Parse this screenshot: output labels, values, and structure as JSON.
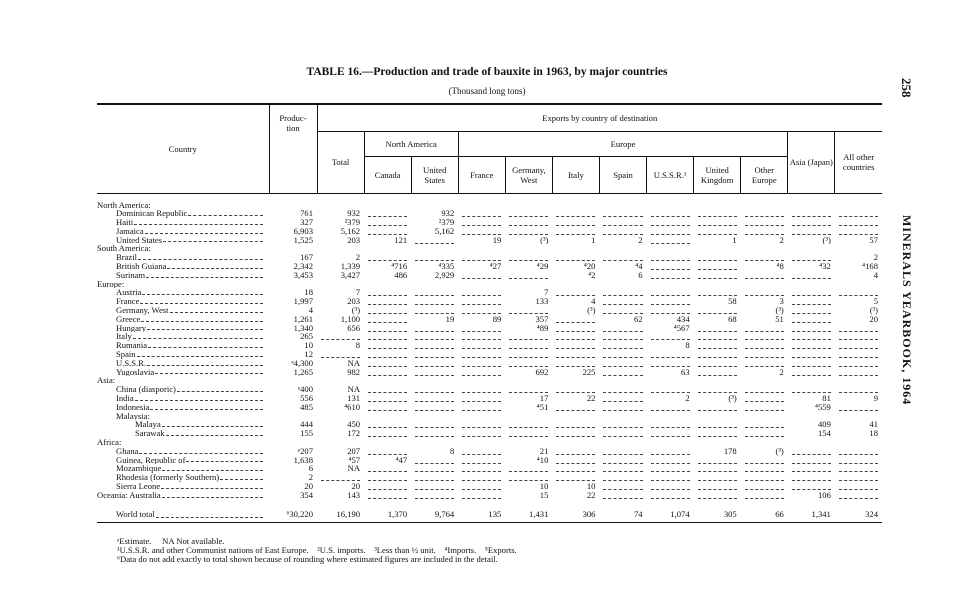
{
  "page_number": "258",
  "side_title": "MINERALS YEARBOOK, 1964",
  "title": "TABLE 16.—Production and trade of bauxite in 1963, by major countries",
  "subtitle": "(Thousand long tons)",
  "header": {
    "country": "Country",
    "production": [
      "Produc-",
      "tion"
    ],
    "exports": "Exports by country of destination",
    "total": "Total",
    "north_america": "North America",
    "europe": "Europe",
    "asia": "Asia (Japan)",
    "all_other": "All other countries",
    "columns": [
      "Canada",
      "United States",
      "France",
      "Germany, West",
      "Italy",
      "Spain",
      "U.S.S.R.¹",
      "United Kingdom",
      "Other Europe"
    ]
  },
  "sections": [
    {
      "label": "North America:",
      "rows": [
        {
          "label": "Dominican Republic",
          "cells": [
            "761",
            "932",
            null,
            "932",
            null,
            null,
            null,
            null,
            null,
            null,
            null,
            null,
            null
          ]
        },
        {
          "label": "Haiti",
          "cells": [
            "327",
            "²379",
            null,
            "²379",
            null,
            null,
            null,
            null,
            null,
            null,
            null,
            null,
            null
          ]
        },
        {
          "label": "Jamaica",
          "cells": [
            "6,903",
            "5,162",
            null,
            "5,162",
            null,
            null,
            null,
            null,
            null,
            null,
            null,
            null,
            null
          ]
        },
        {
          "label": "United States",
          "cells": [
            "1,525",
            "203",
            "121",
            null,
            "19",
            "(³)",
            "1",
            "2",
            null,
            "1",
            "2",
            "(³)",
            "57"
          ]
        }
      ]
    },
    {
      "label": "South America:",
      "rows": [
        {
          "label": "Brazil",
          "cells": [
            "167",
            "2",
            null,
            null,
            null,
            null,
            null,
            null,
            null,
            null,
            null,
            null,
            "2"
          ]
        },
        {
          "label": "British Guiana",
          "cells": [
            "2,342",
            "1,339",
            "⁴716",
            "⁴335",
            "⁴27",
            "⁴29",
            "⁴20",
            "⁴4",
            null,
            null,
            "⁴8",
            "⁴32",
            "⁴168"
          ]
        },
        {
          "label": "Surinam",
          "cells": [
            "3,453",
            "3,427",
            "486",
            "2,929",
            null,
            null,
            "⁴2",
            "6",
            null,
            null,
            null,
            null,
            "4"
          ]
        }
      ]
    },
    {
      "label": "Europe:",
      "rows": [
        {
          "label": "Austria",
          "cells": [
            "18",
            "7",
            null,
            null,
            null,
            "7",
            null,
            null,
            null,
            null,
            null,
            null,
            null
          ]
        },
        {
          "label": "France",
          "cells": [
            "1,997",
            "203",
            null,
            null,
            null,
            "133",
            "4",
            null,
            null,
            "58",
            "3",
            null,
            "5"
          ]
        },
        {
          "label": "Germany, West",
          "cells": [
            "4",
            "(³)",
            null,
            null,
            null,
            null,
            "(³)",
            null,
            null,
            null,
            "(³)",
            null,
            "(³)"
          ]
        },
        {
          "label": "Greece",
          "cells": [
            "1,261",
            "1,100",
            null,
            "19",
            "89",
            "357",
            null,
            "62",
            "434",
            "68",
            "51",
            null,
            "20"
          ]
        },
        {
          "label": "Hungary",
          "cells": [
            "1,340",
            "656",
            null,
            null,
            null,
            "⁴89",
            null,
            null,
            "⁴567",
            null,
            null,
            null,
            null
          ]
        },
        {
          "label": "Italy",
          "cells": [
            "265",
            null,
            null,
            null,
            null,
            null,
            null,
            null,
            null,
            null,
            null,
            null,
            null
          ]
        },
        {
          "label": "Rumania",
          "cells": [
            "10",
            "8",
            null,
            null,
            null,
            null,
            null,
            null,
            "8",
            null,
            null,
            null,
            null
          ]
        },
        {
          "label": "Spain",
          "cells": [
            "12",
            null,
            null,
            null,
            null,
            null,
            null,
            null,
            null,
            null,
            null,
            null,
            null
          ]
        },
        {
          "label": "U.S.S.R.",
          "cells": [
            "ᵉ4,300",
            "NA",
            null,
            null,
            null,
            null,
            null,
            null,
            null,
            null,
            null,
            null,
            null
          ]
        },
        {
          "label": "Yugoslavia",
          "cells": [
            "1,265",
            "982",
            null,
            null,
            null,
            "692",
            "225",
            null,
            "63",
            null,
            "2",
            null,
            null
          ]
        }
      ]
    },
    {
      "label": "Asia:",
      "rows": [
        {
          "label": "China (diasporic)",
          "cells": [
            "ᵉ400",
            "NA",
            null,
            null,
            null,
            null,
            null,
            null,
            null,
            null,
            null,
            null,
            null
          ]
        },
        {
          "label": "India",
          "cells": [
            "556",
            "131",
            null,
            null,
            null,
            "17",
            "22",
            null,
            "2",
            "(³)",
            null,
            "81",
            "9"
          ]
        },
        {
          "label": "Indonesia",
          "cells": [
            "485",
            "⁴610",
            null,
            null,
            null,
            "⁴51",
            null,
            null,
            null,
            null,
            null,
            "⁴559",
            null
          ]
        },
        {
          "label": "Malaysia:",
          "rows": [
            {
              "label": "Malaya",
              "cells": [
                "444",
                "450",
                null,
                null,
                null,
                null,
                null,
                null,
                null,
                null,
                null,
                "409",
                "41"
              ]
            },
            {
              "label": "Sarawak",
              "cells": [
                "155",
                "172",
                null,
                null,
                null,
                null,
                null,
                null,
                null,
                null,
                null,
                "154",
                "18"
              ]
            }
          ]
        }
      ]
    },
    {
      "label": "Africa:",
      "rows": [
        {
          "label": "Ghana",
          "cells": [
            "ᵉ207",
            "207",
            null,
            "8",
            null,
            "21",
            null,
            null,
            null,
            "178",
            "(³)",
            null,
            null
          ]
        },
        {
          "label": "Guinea, Republic of",
          "cells": [
            "1,638",
            "⁴57",
            "⁴47",
            null,
            null,
            "⁴10",
            null,
            null,
            null,
            null,
            null,
            null,
            null
          ]
        },
        {
          "label": "Mozambique",
          "cells": [
            "6",
            "NA",
            null,
            null,
            null,
            null,
            null,
            null,
            null,
            null,
            null,
            null,
            null
          ]
        },
        {
          "label": "Rhodesia (formerly Southern)",
          "cells": [
            "2",
            null,
            null,
            null,
            null,
            null,
            null,
            null,
            null,
            null,
            null,
            null,
            null
          ]
        },
        {
          "label": "Sierra Leone",
          "cells": [
            "20",
            "20",
            null,
            null,
            null,
            "10",
            "10",
            null,
            null,
            null,
            null,
            null,
            null
          ]
        }
      ]
    },
    {
      "label": "Oceania: Australia",
      "cells": [
        "354",
        "143",
        null,
        null,
        null,
        "15",
        "22",
        null,
        null,
        null,
        null,
        "106",
        null
      ]
    }
  ],
  "world_total": {
    "label": "World total",
    "cells": [
      "⁶30,220",
      "16,190",
      "1,370",
      "9,764",
      "135",
      "1,431",
      "306",
      "74",
      "1,074",
      "305",
      "66",
      "1,341",
      "324"
    ]
  },
  "footnotes": [
    "ᵉEstimate.     NA Not available.",
    "¹U.S.S.R. and other Communist nations of East Europe.    ²U.S. imports.    ³Less than ½ unit.    ⁴Imports.    ⁵Exports.",
    "⁶Data do not add exactly to total shown because of rounding where estimated figures are included in the detail."
  ]
}
